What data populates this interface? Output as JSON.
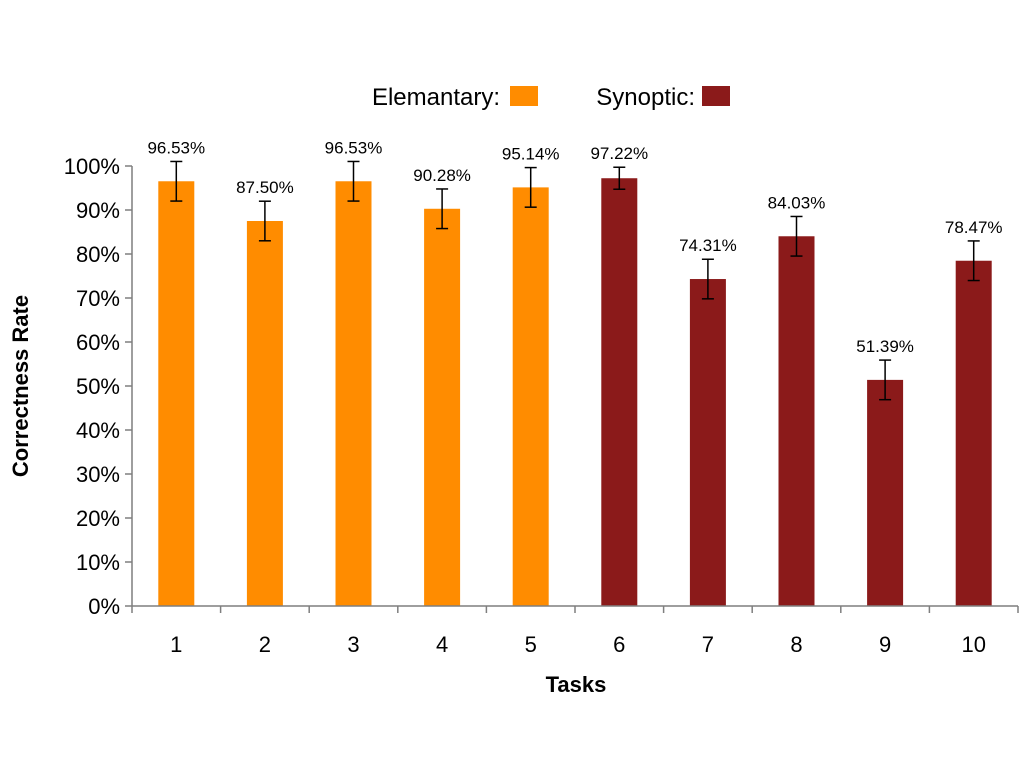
{
  "chart_data": {
    "type": "bar",
    "categories": [
      "1",
      "2",
      "3",
      "4",
      "5",
      "6",
      "7",
      "8",
      "9",
      "10"
    ],
    "values": [
      0.9653,
      0.875,
      0.9653,
      0.9028,
      0.9514,
      0.9722,
      0.7431,
      0.8403,
      0.5139,
      0.7847
    ],
    "data_labels": [
      "96.53%",
      "87.50%",
      "96.53%",
      "90.28%",
      "95.14%",
      "97.22%",
      "74.31%",
      "84.03%",
      "51.39%",
      "78.47%"
    ],
    "error": [
      0.045,
      0.045,
      0.045,
      0.045,
      0.045,
      0.025,
      0.045,
      0.045,
      0.045,
      0.045
    ],
    "groups": [
      "Elemantary",
      "Elemantary",
      "Elemantary",
      "Elemantary",
      "Elemantary",
      "Synoptic",
      "Synoptic",
      "Synoptic",
      "Synoptic",
      "Synoptic"
    ],
    "legend": [
      {
        "name": "Elemantary:",
        "color": "#ff8c00"
      },
      {
        "name": "Synoptic:",
        "color": "#8b1a1a"
      }
    ],
    "legend_position": "top-center",
    "xlabel": "Tasks",
    "ylabel": "Correctness Rate",
    "ylim": [
      0,
      1
    ],
    "yticks": [
      0,
      0.1,
      0.2,
      0.3,
      0.4,
      0.5,
      0.6,
      0.7,
      0.8,
      0.9,
      1.0
    ],
    "ytick_labels": [
      "0%",
      "10%",
      "20%",
      "30%",
      "40%",
      "50%",
      "60%",
      "70%",
      "80%",
      "90%",
      "100%"
    ],
    "grid": false
  }
}
